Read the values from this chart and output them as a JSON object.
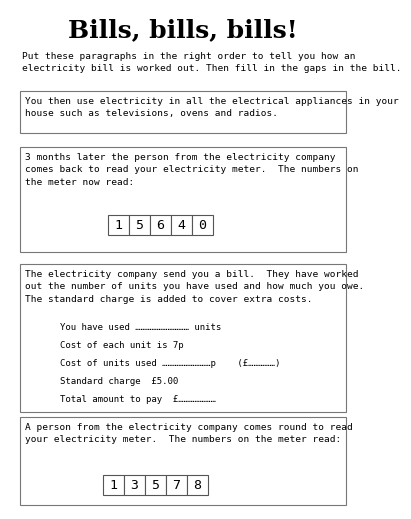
{
  "title": "Bills, bills, bills!",
  "subtitle": "Put these paragraphs in the right order to tell you how an\nelectricity bill is worked out. Then fill in the gaps in the bill.",
  "box1_text": "You then use electricity in all the electrical appliances in your\nhouse such as televisions, ovens and radios.",
  "box2_text": "3 months later the person from the electricity company\ncomes back to read your electricity meter.  The numbers on\nthe meter now read:",
  "box2_digits": [
    "1",
    "5",
    "6",
    "4",
    "0"
  ],
  "box3_header": "The electricity company send you a bill.  They have worked\nout the number of units you have used and how much you owe.\nThe standard charge is added to cover extra costs.",
  "box3_lines": [
    "You have used ………………………… units",
    "Cost of each unit is 7p",
    "Cost of units used ………………………p    (£……………)",
    "Standard charge  £5.00",
    "Total amount to pay  £…………………"
  ],
  "box4_text": "A person from the electricity company comes round to read\nyour electricity meter.  The numbers on the meter read:",
  "box4_digits": [
    "1",
    "3",
    "5",
    "7",
    "8"
  ],
  "bg_color": "#ffffff",
  "font_color": "#000000",
  "box_edge_color": "#777777",
  "title_fontsize": 18,
  "body_fontsize": 6.8,
  "bill_fontsize": 6.5,
  "digit_fontsize": 9.5
}
